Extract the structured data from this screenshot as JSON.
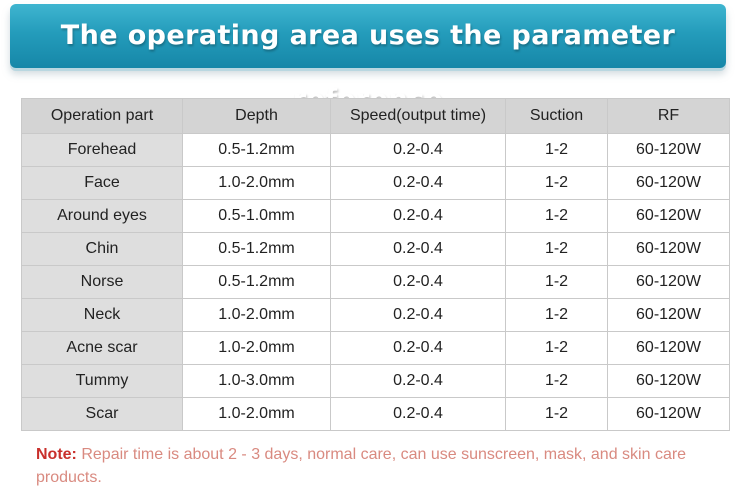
{
  "banner": {
    "title": "The operating area uses the parameter reference"
  },
  "table": {
    "headers": [
      "Operation part",
      "Depth",
      "Speed(output time)",
      "Suction",
      "RF"
    ],
    "rows": [
      [
        "Forehead",
        "0.5-1.2mm",
        "0.2-0.4",
        "1-2",
        "60-120W"
      ],
      [
        "Face",
        "1.0-2.0mm",
        "0.2-0.4",
        "1-2",
        "60-120W"
      ],
      [
        "Around eyes",
        "0.5-1.0mm",
        "0.2-0.4",
        "1-2",
        "60-120W"
      ],
      [
        "Chin",
        "0.5-1.2mm",
        "0.2-0.4",
        "1-2",
        "60-120W"
      ],
      [
        "Norse",
        "0.5-1.2mm",
        "0.2-0.4",
        "1-2",
        "60-120W"
      ],
      [
        "Neck",
        "1.0-2.0mm",
        "0.2-0.4",
        "1-2",
        "60-120W"
      ],
      [
        "Acne scar",
        "1.0-2.0mm",
        "0.2-0.4",
        "1-2",
        "60-120W"
      ],
      [
        "Tummy",
        "1.0-3.0mm",
        "0.2-0.4",
        "1-2",
        "60-120W"
      ],
      [
        "Scar",
        "1.0-2.0mm",
        "0.2-0.4",
        "1-2",
        "60-120W"
      ]
    ]
  },
  "note": {
    "label": "Note:",
    "text": " Repair time is about 2 - 3 days, normal care, can use sunscreen, mask, and skin care products."
  },
  "colors": {
    "banner": "#249cbb",
    "header_bg": "#d4d4d4",
    "first_col_bg": "#dedede",
    "note_label": "#c9302c",
    "note_text": "#d98a80"
  }
}
